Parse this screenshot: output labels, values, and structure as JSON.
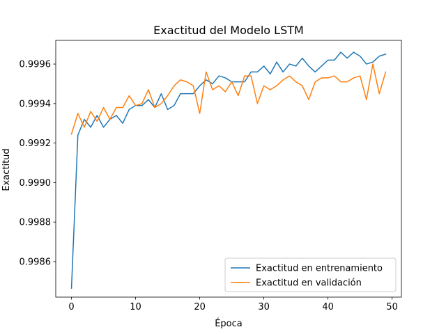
{
  "chart_data": {
    "type": "line",
    "title": "Exactitud del Modelo LSTM",
    "xlabel": "Época",
    "ylabel": "Exactitud",
    "xlim": [
      -2.45,
      51.45
    ],
    "ylim": [
      0.99842,
      0.99972
    ],
    "xticks": [
      0,
      10,
      20,
      30,
      40,
      50
    ],
    "yticks": [
      0.9986,
      0.9988,
      0.999,
      0.9992,
      0.9994,
      0.9996
    ],
    "ytick_labels": [
      "0.9986",
      "0.9988",
      "0.9990",
      "0.9992",
      "0.9994",
      "0.9996"
    ],
    "grid": false,
    "legend_position": "lower-right",
    "x": [
      0,
      1,
      2,
      3,
      4,
      5,
      6,
      7,
      8,
      9,
      10,
      11,
      12,
      13,
      14,
      15,
      16,
      17,
      18,
      19,
      20,
      21,
      22,
      23,
      24,
      25,
      26,
      27,
      28,
      29,
      30,
      31,
      32,
      33,
      34,
      35,
      36,
      37,
      38,
      39,
      40,
      41,
      42,
      43,
      44,
      45,
      46,
      47,
      48,
      49
    ],
    "series": [
      {
        "name": "Exactitud en entrenamiento",
        "color": "#1f77b4",
        "values": [
          0.998465,
          0.99924,
          0.99932,
          0.99928,
          0.99934,
          0.99928,
          0.99932,
          0.99934,
          0.9993,
          0.99937,
          0.99939,
          0.99939,
          0.99942,
          0.99938,
          0.99945,
          0.99937,
          0.99939,
          0.99945,
          0.99945,
          0.99945,
          0.99949,
          0.99952,
          0.9995,
          0.99954,
          0.99953,
          0.99951,
          0.99951,
          0.99951,
          0.99956,
          0.99956,
          0.99959,
          0.99955,
          0.99961,
          0.99956,
          0.9996,
          0.99959,
          0.99963,
          0.99959,
          0.99956,
          0.99959,
          0.99962,
          0.99962,
          0.99966,
          0.99963,
          0.99966,
          0.99964,
          0.9996,
          0.99961,
          0.99964,
          0.99965
        ]
      },
      {
        "name": "Exactitud en validación",
        "color": "#ff7f0e",
        "values": [
          0.999245,
          0.99935,
          0.99928,
          0.99936,
          0.99931,
          0.99938,
          0.99932,
          0.99938,
          0.99938,
          0.99944,
          0.99939,
          0.9994,
          0.99947,
          0.99938,
          0.9994,
          0.99944,
          0.99949,
          0.99952,
          0.99951,
          0.99949,
          0.99935,
          0.99956,
          0.99947,
          0.99949,
          0.99946,
          0.99951,
          0.99944,
          0.99954,
          0.99954,
          0.9994,
          0.99949,
          0.99947,
          0.99949,
          0.99952,
          0.99954,
          0.99951,
          0.99949,
          0.99942,
          0.99951,
          0.99953,
          0.99953,
          0.99954,
          0.99951,
          0.99951,
          0.99953,
          0.99954,
          0.99942,
          0.9996,
          0.99945,
          0.99956
        ]
      }
    ]
  }
}
